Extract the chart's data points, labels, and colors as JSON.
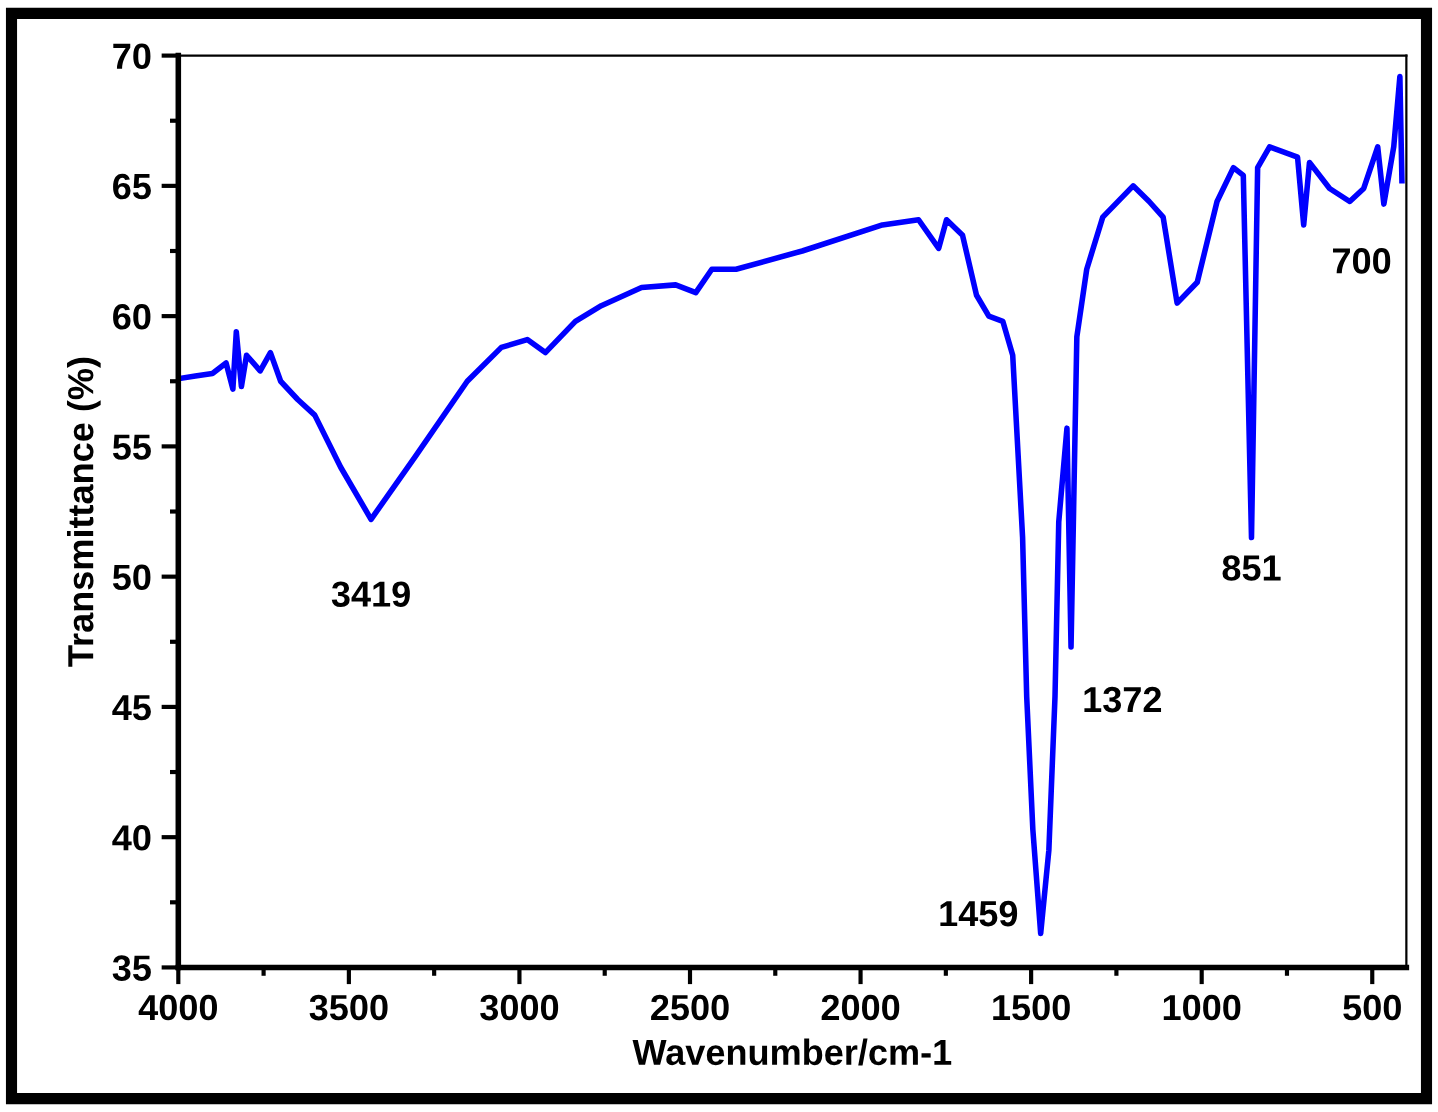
{
  "chart_data": {
    "type": "line",
    "xlabel": "Wavenumber/cm-1",
    "ylabel": "Transmittance (%)",
    "xlim": [
      4000,
      400
    ],
    "xticks": [
      4000,
      3500,
      3000,
      2500,
      2000,
      1500,
      1000,
      500
    ],
    "ylim": [
      35,
      70
    ],
    "yticks": [
      35,
      40,
      45,
      50,
      55,
      60,
      65,
      70
    ],
    "grid": false,
    "legend": false,
    "marker": "none",
    "line_style": "solid",
    "series": [
      {
        "color": "#0000ff",
        "x": [
          4000,
          3950,
          3900,
          3860,
          3840,
          3830,
          3815,
          3800,
          3760,
          3730,
          3700,
          3650,
          3600,
          3524,
          3435,
          3306,
          3153,
          3053,
          2977,
          2924,
          2836,
          2760,
          2642,
          2542,
          2483,
          2436,
          2365,
          2171,
          1936,
          1830,
          1771,
          1748,
          1701,
          1660,
          1624,
          1583,
          1554,
          1525,
          1513,
          1495,
          1472,
          1448,
          1430,
          1419,
          1395,
          1383,
          1366,
          1337,
          1290,
          1201,
          1154,
          1113,
          1072,
          1013,
          955,
          907,
          878,
          854,
          836,
          801,
          719,
          701,
          684,
          625,
          566,
          525,
          484,
          466,
          437,
          419,
          413
        ],
        "values": [
          57.6,
          57.7,
          57.8,
          58.2,
          57.2,
          59.4,
          57.3,
          58.5,
          57.9,
          58.6,
          57.5,
          56.8,
          56.2,
          54.2,
          52.2,
          54.6,
          57.5,
          58.8,
          59.1,
          58.6,
          59.8,
          60.4,
          61.1,
          61.2,
          60.9,
          61.8,
          61.8,
          62.5,
          63.5,
          63.7,
          62.6,
          63.7,
          63.1,
          60.8,
          60.0,
          59.8,
          58.5,
          51.5,
          45.4,
          40.3,
          36.3,
          39.5,
          45.4,
          52.1,
          55.7,
          47.3,
          59.2,
          61.8,
          63.8,
          65.0,
          64.4,
          63.8,
          60.5,
          61.3,
          64.4,
          65.7,
          65.4,
          51.5,
          65.7,
          66.5,
          66.1,
          63.5,
          65.9,
          64.9,
          64.4,
          64.9,
          66.5,
          64.3,
          66.5,
          69.2,
          65.2
        ]
      }
    ],
    "annotations": [
      {
        "text": "3419",
        "x": 3435,
        "y": 52.2
      },
      {
        "text": "1459",
        "x": 1472,
        "y": 36.3
      },
      {
        "text": "1372",
        "x": 1383,
        "y": 47.3
      },
      {
        "text": "851",
        "x": 854,
        "y": 51.5
      },
      {
        "text": "700",
        "x": 701,
        "y": 63.5
      }
    ]
  }
}
